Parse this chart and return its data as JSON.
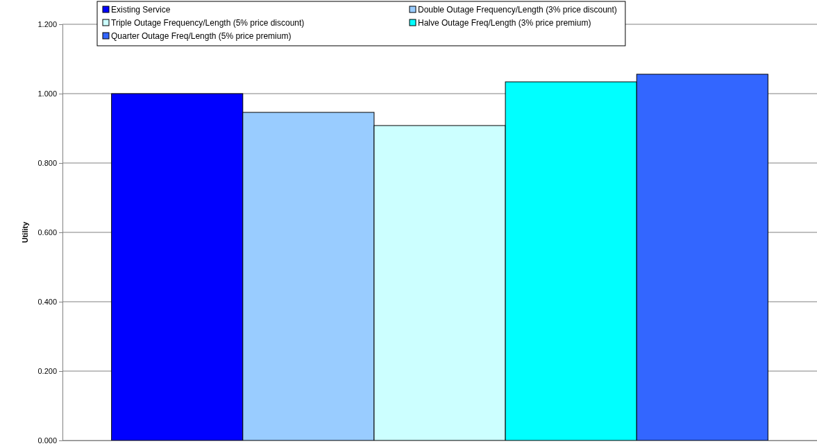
{
  "chart_data": {
    "type": "bar",
    "ylabel": "Utility",
    "categories": [
      null
    ],
    "series": [
      {
        "name": "Existing Service",
        "color": "#0000ff",
        "values": [
          1.0
        ]
      },
      {
        "name": "Double Outage Frequency/Length (3% price discount)",
        "color": "#99ccff",
        "values": [
          0.946
        ]
      },
      {
        "name": "Triple Outage Frequency/Length (5% price discount)",
        "color": "#ccffff",
        "values": [
          0.908
        ]
      },
      {
        "name": "Halve Outage Freq/Length (3% price premium)",
        "color": "#00ffff",
        "values": [
          1.034
        ]
      },
      {
        "name": "Quarter Outage Freq/Length (5% price premium)",
        "color": "#3366ff",
        "values": [
          1.056
        ]
      }
    ],
    "ylim": [
      0,
      1.2
    ],
    "yticks": [
      {
        "value": 0,
        "label": "0.000"
      },
      {
        "value": 0.2,
        "label": "0.200"
      },
      {
        "value": 0.4,
        "label": "0.400"
      },
      {
        "value": 0.6,
        "label": "0.600"
      },
      {
        "value": 0.8,
        "label": "0.800"
      },
      {
        "value": 1.0,
        "label": "1.000"
      },
      {
        "value": 1.2,
        "label": "1.200"
      }
    ],
    "grid": "y",
    "legend": "top"
  }
}
